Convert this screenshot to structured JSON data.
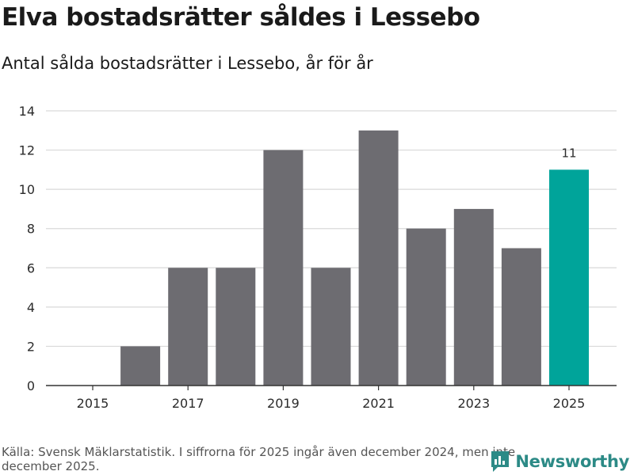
{
  "header": {
    "title": "Elva bostadsrätter såldes i Lessebo",
    "subtitle": "Antal sålda bostadsrätter i Lessebo, år för år"
  },
  "chart_data": {
    "type": "bar",
    "title": "Elva bostadsrätter såldes i Lessebo",
    "subtitle": "Antal sålda bostadsrätter i Lessebo, år för år",
    "xlabel": "",
    "ylabel": "",
    "categories": [
      "2015",
      "2016",
      "2017",
      "2018",
      "2019",
      "2020",
      "2021",
      "2022",
      "2023",
      "2024",
      "2025"
    ],
    "values": [
      0,
      2,
      6,
      6,
      12,
      6,
      13,
      8,
      9,
      7,
      11
    ],
    "x_tick_labels": [
      "2015",
      "2017",
      "2019",
      "2021",
      "2023",
      "2025"
    ],
    "y_ticks": [
      "0",
      "2",
      "4",
      "6",
      "8",
      "10",
      "12",
      "14"
    ],
    "ylim": [
      0,
      14
    ],
    "grid": true,
    "highlight_category": "2025",
    "annotations": [
      {
        "category": "2025",
        "label": "11"
      }
    ],
    "colors": {
      "bar": "#6d6c71",
      "highlight": "#00a49a",
      "grid": "#d9d9d9",
      "axis": "#333333"
    }
  },
  "footer": {
    "source": "Källa: Svensk Mäklarstatistik. I siffrorna för 2025 ingår även december 2024, men inte december 2025.",
    "brand": "Newsworthy",
    "brand_icon": "bar-chart-speech-bubble-icon",
    "brand_color": "#2c8a86"
  }
}
